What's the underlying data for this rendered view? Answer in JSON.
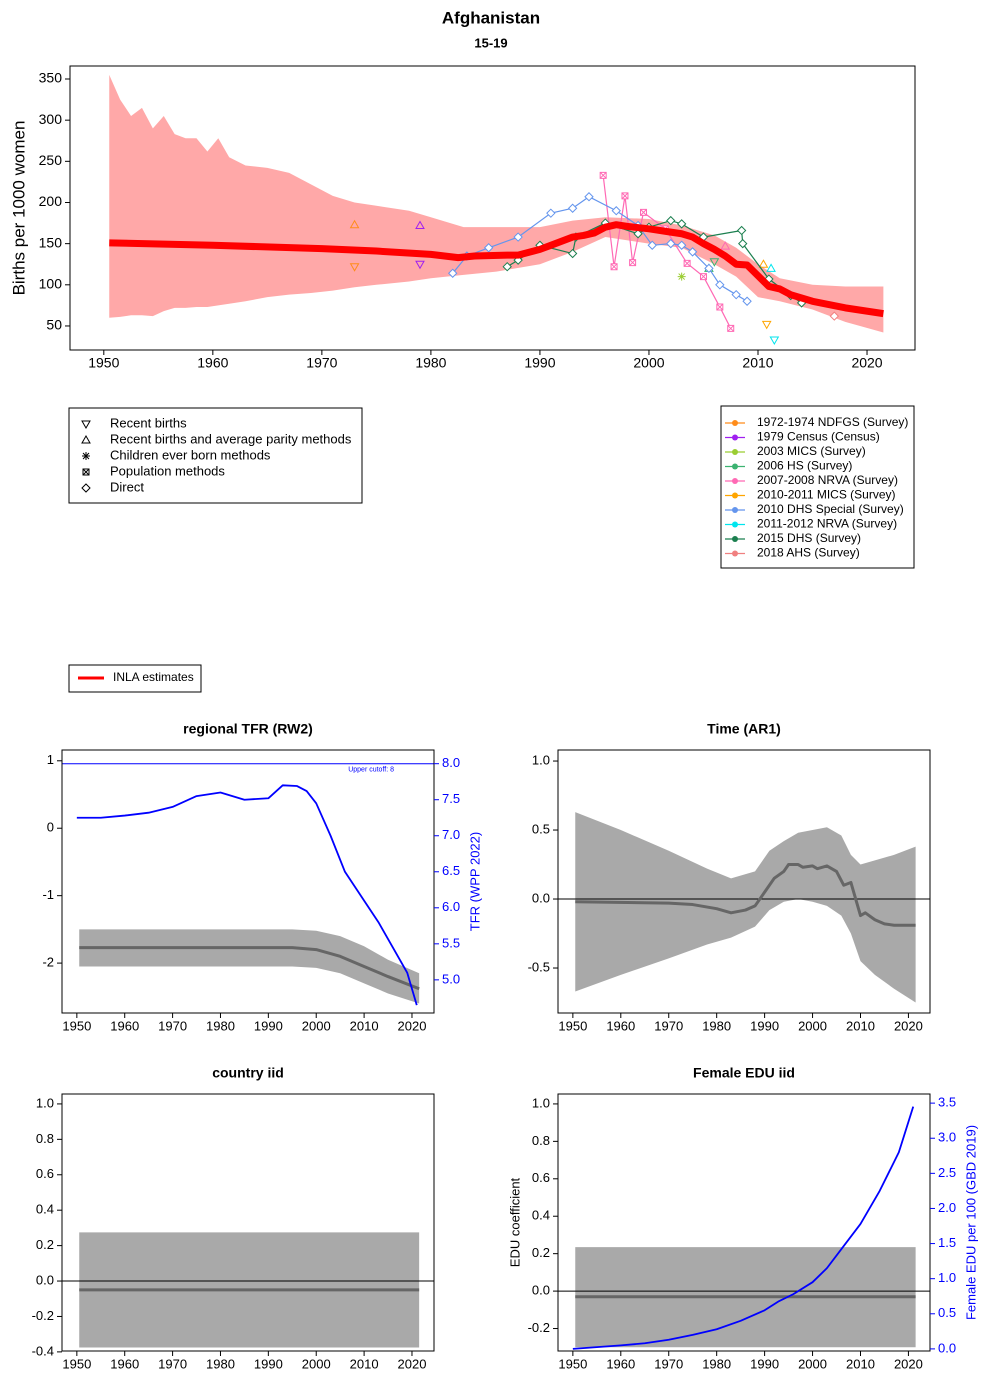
{
  "chart_data": [
    {
      "type": "line",
      "title": "Afghanistan",
      "subtitle": "15-19",
      "ylabel": "Births per 1000 women",
      "xlim": [
        1946.9,
        2024.4
      ],
      "ylim": [
        20.8,
        365.8
      ],
      "xticks": [
        1950,
        1960,
        1970,
        1980,
        1990,
        2000,
        2010,
        2020
      ],
      "yticks": [
        50,
        100,
        150,
        200,
        250,
        300,
        350
      ],
      "band": {
        "color": "#ffa8a8",
        "x": [
          1950.5,
          1951.5,
          1952.5,
          1953.5,
          1954.5,
          1955.5,
          1956.5,
          1957.5,
          1958.5,
          1959.5,
          1960.5,
          1961.5,
          1963,
          1965,
          1967,
          1969,
          1971,
          1973,
          1975,
          1978,
          1980,
          1983,
          1986,
          1990,
          1993,
          1996,
          2000,
          2003,
          2006,
          2008,
          2010,
          2012,
          2015,
          2018,
          2021.5
        ],
        "upper": [
          355,
          325,
          305,
          315,
          290,
          305,
          283,
          278,
          278,
          262,
          278,
          255,
          245,
          242,
          236,
          222,
          208,
          200,
          196,
          190,
          182,
          170,
          170,
          170,
          178,
          182,
          180,
          172,
          160,
          145,
          125,
          108,
          100,
          98,
          98
        ],
        "lower": [
          60,
          61,
          63,
          63,
          62,
          68,
          72,
          72,
          73,
          73,
          75,
          77,
          80,
          85,
          88,
          90,
          93,
          97,
          100,
          104,
          108,
          112,
          116,
          125,
          140,
          158,
          150,
          145,
          125,
          110,
          85,
          80,
          70,
          55,
          42
        ]
      },
      "series": [
        {
          "name": "INLA estimates",
          "color": "#ff0000",
          "x": [
            1950.5,
            1960,
            1970,
            1975,
            1980,
            1982.5,
            1984,
            1987,
            1988,
            1990,
            1991,
            1992,
            1993,
            1994,
            1995,
            1996,
            1997,
            1998,
            2000,
            2002,
            2003,
            2004,
            2005,
            2006,
            2007,
            2008,
            2009,
            2010,
            2011,
            2012,
            2013,
            2015,
            2018,
            2021.5
          ],
          "values": [
            151,
            148,
            144,
            141,
            137,
            133,
            135,
            136,
            136,
            143,
            148,
            153,
            158,
            160,
            163,
            170,
            173,
            171,
            168,
            164,
            162,
            158,
            150,
            143,
            135,
            125,
            124,
            111,
            98,
            95,
            88,
            80,
            72,
            65
          ]
        }
      ],
      "surveys": [
        {
          "name": "1972-1974 NDFGS (Survey)",
          "color": "#ff8c1a",
          "x": [
            1973,
            1973
          ],
          "values": [
            173,
            122
          ],
          "markers": [
            "triangle-up",
            "triangle-down"
          ]
        },
        {
          "name": "1979 Census (Census)",
          "color": "#a020f0",
          "x": [
            1979,
            1979
          ],
          "values": [
            172,
            125
          ],
          "markers": [
            "triangle-up",
            "triangle-down"
          ]
        },
        {
          "name": "2003 MICS (Survey)",
          "color": "#9acd32",
          "x": [
            2003
          ],
          "values": [
            110
          ],
          "markers": [
            "star"
          ]
        },
        {
          "name": "2006 HS (Survey)",
          "color": "#3cb371",
          "x": [
            2005.5,
            2006
          ],
          "values": [
            120,
            128
          ],
          "markers": [
            "triangle-up",
            "triangle-down"
          ]
        },
        {
          "name": "2007-2008 NRVA (Survey)",
          "color": "#ff69b4",
          "connect": "square-x",
          "x": [
            1995.8,
            1996.8,
            1997.8,
            1998.5,
            1999.5,
            2001.5,
            2003.5,
            2005,
            2006.5,
            2007.5,
            2007
          ],
          "values": [
            233,
            122,
            208,
            127,
            188,
            168,
            126,
            110,
            73,
            47,
            147
          ],
          "markers": [
            "square-x",
            "square-x",
            "square-x",
            "square-x",
            "square-x",
            "square-x",
            "square-x",
            "square-x",
            "square-x",
            "square-x",
            "triangle-up"
          ]
        },
        {
          "name": "2010-2011 MICS (Survey)",
          "color": "#ffa500",
          "x": [
            2010.5,
            2010.8
          ],
          "values": [
            125,
            52
          ],
          "markers": [
            "triangle-up",
            "triangle-down"
          ]
        },
        {
          "name": "2010 DHS Special (Survey)",
          "color": "#6495ed",
          "connect": "diamond",
          "x": [
            1982,
            1983.3,
            1985.3,
            1988,
            1991,
            1993,
            1994.5,
            1997,
            1999,
            2000.3,
            2002,
            2003,
            2004,
            2005.5,
            2006.5,
            2008,
            2009
          ],
          "values": [
            114,
            135,
            145,
            158,
            187,
            193,
            207,
            190,
            172,
            148,
            150,
            148,
            140,
            120,
            100,
            88,
            80
          ],
          "markers": [
            "diamond",
            "diamond",
            "diamond",
            "diamond",
            "diamond",
            "diamond",
            "diamond",
            "diamond",
            "diamond",
            "diamond",
            "diamond",
            "diamond",
            "diamond",
            "diamond",
            "diamond",
            "diamond",
            "diamond"
          ]
        },
        {
          "name": "2011-2012 NRVA (Survey)",
          "color": "#00e5ee",
          "x": [
            2011.2,
            2011.5
          ],
          "values": [
            120,
            33
          ],
          "markers": [
            "triangle-up",
            "triangle-down"
          ]
        },
        {
          "name": "2015 DHS (Survey)",
          "color": "#1b7f4f",
          "connect": "diamond",
          "x": [
            1987,
            1988,
            1990,
            1993,
            1993.3,
            1996,
            1999,
            2000,
            2002,
            2003,
            2005,
            2008.5,
            2008.6,
            2011,
            2013,
            2014
          ],
          "values": [
            122,
            130,
            148,
            138,
            158,
            175,
            162,
            170,
            178,
            174,
            158,
            166,
            150,
            107,
            87,
            78
          ],
          "markers": [
            "diamond",
            "diamond",
            "diamond",
            "diamond",
            "diamond",
            "diamond",
            "diamond",
            "diamond",
            "diamond",
            "diamond",
            "diamond",
            "diamond",
            "diamond",
            "diamond",
            "diamond",
            "diamond"
          ]
        },
        {
          "name": "2018 AHS (Survey)",
          "color": "#f08080",
          "x": [
            2017
          ],
          "values": [
            62
          ],
          "markers": [
            "diamond"
          ]
        }
      ]
    },
    {
      "type": "line",
      "title": "regional TFR (RW2)",
      "y2label": "TFR (WPP 2022)",
      "xlim": [
        1946.9,
        2024.6
      ],
      "ylim": [
        -2.74,
        1.16
      ],
      "y2lim": [
        4.54,
        8.19
      ],
      "xticks": [
        1950,
        1960,
        1970,
        1980,
        1990,
        2000,
        2010,
        2020
      ],
      "yticks": [
        -2,
        -1,
        0,
        1
      ],
      "y2ticks": [
        {
          "value": 5,
          "label": "5.0"
        },
        5.5,
        {
          "value": 6,
          "label": "6.0"
        },
        6.5,
        {
          "value": 7,
          "label": "7.0"
        },
        7.5,
        {
          "value": 8,
          "label": "8.0"
        }
      ],
      "upper_cutoff": 8,
      "annotation": "Upper cutoff: 8",
      "band": {
        "color": "#a9a9a9",
        "x": [
          1950.5,
          1995,
          2000,
          2005,
          2010,
          2015,
          2021.5
        ],
        "upper": [
          -1.5,
          -1.5,
          -1.52,
          -1.6,
          -1.75,
          -1.95,
          -2.15
        ],
        "lower": [
          -2.05,
          -2.05,
          -2.07,
          -2.15,
          -2.3,
          -2.45,
          -2.6
        ]
      },
      "series": [
        {
          "color": "#666666",
          "x": [
            1950.5,
            1995,
            2000,
            2005,
            2010,
            2015,
            2021.5
          ],
          "values": [
            -1.77,
            -1.77,
            -1.8,
            -1.9,
            -2.05,
            -2.2,
            -2.38
          ]
        },
        {
          "color": "#0000ff",
          "axis": "y2",
          "x": [
            1950,
            1955,
            1960,
            1965,
            1970,
            1975,
            1980,
            1985,
            1990,
            1993,
            1996,
            1998,
            2000,
            2003,
            2006,
            2010,
            2013,
            2016,
            2019,
            2021
          ],
          "values": [
            7.25,
            7.25,
            7.28,
            7.32,
            7.4,
            7.55,
            7.6,
            7.5,
            7.52,
            7.7,
            7.69,
            7.62,
            7.45,
            7.0,
            6.5,
            6.1,
            5.8,
            5.45,
            5.1,
            4.65
          ]
        }
      ]
    },
    {
      "type": "line",
      "title": "Time (AR1)",
      "xlim": [
        1946.9,
        2024.5
      ],
      "ylim": [
        -0.826,
        1.08
      ],
      "xticks": [
        1950,
        1960,
        1970,
        1980,
        1990,
        2000,
        2010,
        2020
      ],
      "yticks": [
        -0.5,
        {
          "value": 0,
          "label": "0.0"
        },
        0.5,
        {
          "value": 1,
          "label": "1.0"
        }
      ],
      "hline": 0,
      "band": {
        "color": "#a9a9a9",
        "x": [
          1950.5,
          1960,
          1970,
          1978,
          1983,
          1988,
          1991,
          1994,
          1997,
          2000,
          2003,
          2006,
          2008,
          2010,
          2013,
          2017,
          2021.5
        ],
        "upper": [
          0.63,
          0.5,
          0.35,
          0.22,
          0.15,
          0.2,
          0.35,
          0.42,
          0.48,
          0.5,
          0.52,
          0.46,
          0.32,
          0.25,
          0.28,
          0.32,
          0.38
        ],
        "lower": [
          -0.67,
          -0.55,
          -0.43,
          -0.33,
          -0.28,
          -0.2,
          -0.08,
          -0.02,
          0.0,
          -0.02,
          -0.05,
          -0.12,
          -0.25,
          -0.45,
          -0.55,
          -0.65,
          -0.75
        ]
      },
      "series": [
        {
          "color": "#666666",
          "x": [
            1950.5,
            1970,
            1975,
            1980,
            1983,
            1986,
            1988,
            1990,
            1992,
            1994,
            1995,
            1997,
            1998,
            2000,
            2001,
            2003,
            2005,
            2006.5,
            2008,
            2010,
            2011,
            2013,
            2015,
            2017,
            2021.5
          ],
          "values": [
            -0.02,
            -0.03,
            -0.04,
            -0.07,
            -0.1,
            -0.08,
            -0.05,
            0.05,
            0.15,
            0.2,
            0.25,
            0.25,
            0.23,
            0.24,
            0.22,
            0.24,
            0.2,
            0.1,
            0.12,
            -0.12,
            -0.1,
            -0.15,
            -0.18,
            -0.19,
            -0.19
          ]
        }
      ]
    },
    {
      "type": "line",
      "title": "country iid",
      "xlim": [
        1946.9,
        2024.6
      ],
      "ylim": [
        -0.395,
        1.056
      ],
      "xticks": [
        1950,
        1960,
        1970,
        1980,
        1990,
        2000,
        2010,
        2020
      ],
      "yticks": [
        -0.4,
        -0.2,
        {
          "value": 0,
          "label": "0.0"
        },
        0.2,
        0.4,
        0.6,
        0.8,
        {
          "value": 1,
          "label": "1.0"
        }
      ],
      "hline": 0,
      "band": {
        "color": "#a9a9a9",
        "x": [
          1950.5,
          2021.5
        ],
        "upper": [
          0.275,
          0.275
        ],
        "lower": [
          -0.375,
          -0.375
        ]
      },
      "series": [
        {
          "color": "#666666",
          "x": [
            1950.5,
            2021.5
          ],
          "values": [
            -0.05,
            -0.05
          ]
        }
      ]
    },
    {
      "type": "line",
      "title": "Female EDU iid",
      "ylabel": "EDU coefficient",
      "y2label": "Female EDU per 100 (GBD 2019)",
      "xlim": [
        1946.9,
        2024.5
      ],
      "ylim": [
        -0.32,
        1.053
      ],
      "y2lim": [
        -0.03,
        3.63
      ],
      "xticks": [
        1950,
        1960,
        1970,
        1980,
        1990,
        2000,
        2010,
        2020
      ],
      "yticks": [
        -0.2,
        {
          "value": 0,
          "label": "0.0"
        },
        0.2,
        0.4,
        0.6,
        0.8,
        {
          "value": 1,
          "label": "1.0"
        }
      ],
      "y2ticks": [
        {
          "value": 0,
          "label": "0.0"
        },
        0.5,
        {
          "value": 1,
          "label": "1.0"
        },
        1.5,
        {
          "value": 2,
          "label": "2.0"
        },
        2.5,
        {
          "value": 3,
          "label": "3.0"
        },
        3.5
      ],
      "hline": 0,
      "band": {
        "color": "#a9a9a9",
        "x": [
          1950.5,
          2021.5
        ],
        "upper": [
          0.235,
          0.235
        ],
        "lower": [
          -0.3,
          -0.3
        ]
      },
      "series": [
        {
          "color": "#666666",
          "x": [
            1950.5,
            2021.5
          ],
          "values": [
            -0.03,
            -0.03
          ]
        },
        {
          "color": "#0000ff",
          "axis": "y2",
          "x": [
            1950,
            1960,
            1965,
            1970,
            1975,
            1980,
            1985,
            1990,
            1993,
            1996,
            2000,
            2003,
            2006,
            2010,
            2014,
            2018,
            2021
          ],
          "values": [
            0,
            0.05,
            0.08,
            0.13,
            0.2,
            0.28,
            0.4,
            0.55,
            0.68,
            0.78,
            0.95,
            1.15,
            1.42,
            1.78,
            2.25,
            2.8,
            3.45
          ]
        }
      ]
    }
  ],
  "marker_legend": [
    {
      "marker": "triangle-down",
      "label": "Recent births"
    },
    {
      "marker": "triangle-up",
      "label": "Recent births and average parity methods"
    },
    {
      "marker": "star",
      "label": "Children ever born methods"
    },
    {
      "marker": "square-x",
      "label": "Population methods"
    },
    {
      "marker": "diamond",
      "label": "Direct"
    }
  ]
}
